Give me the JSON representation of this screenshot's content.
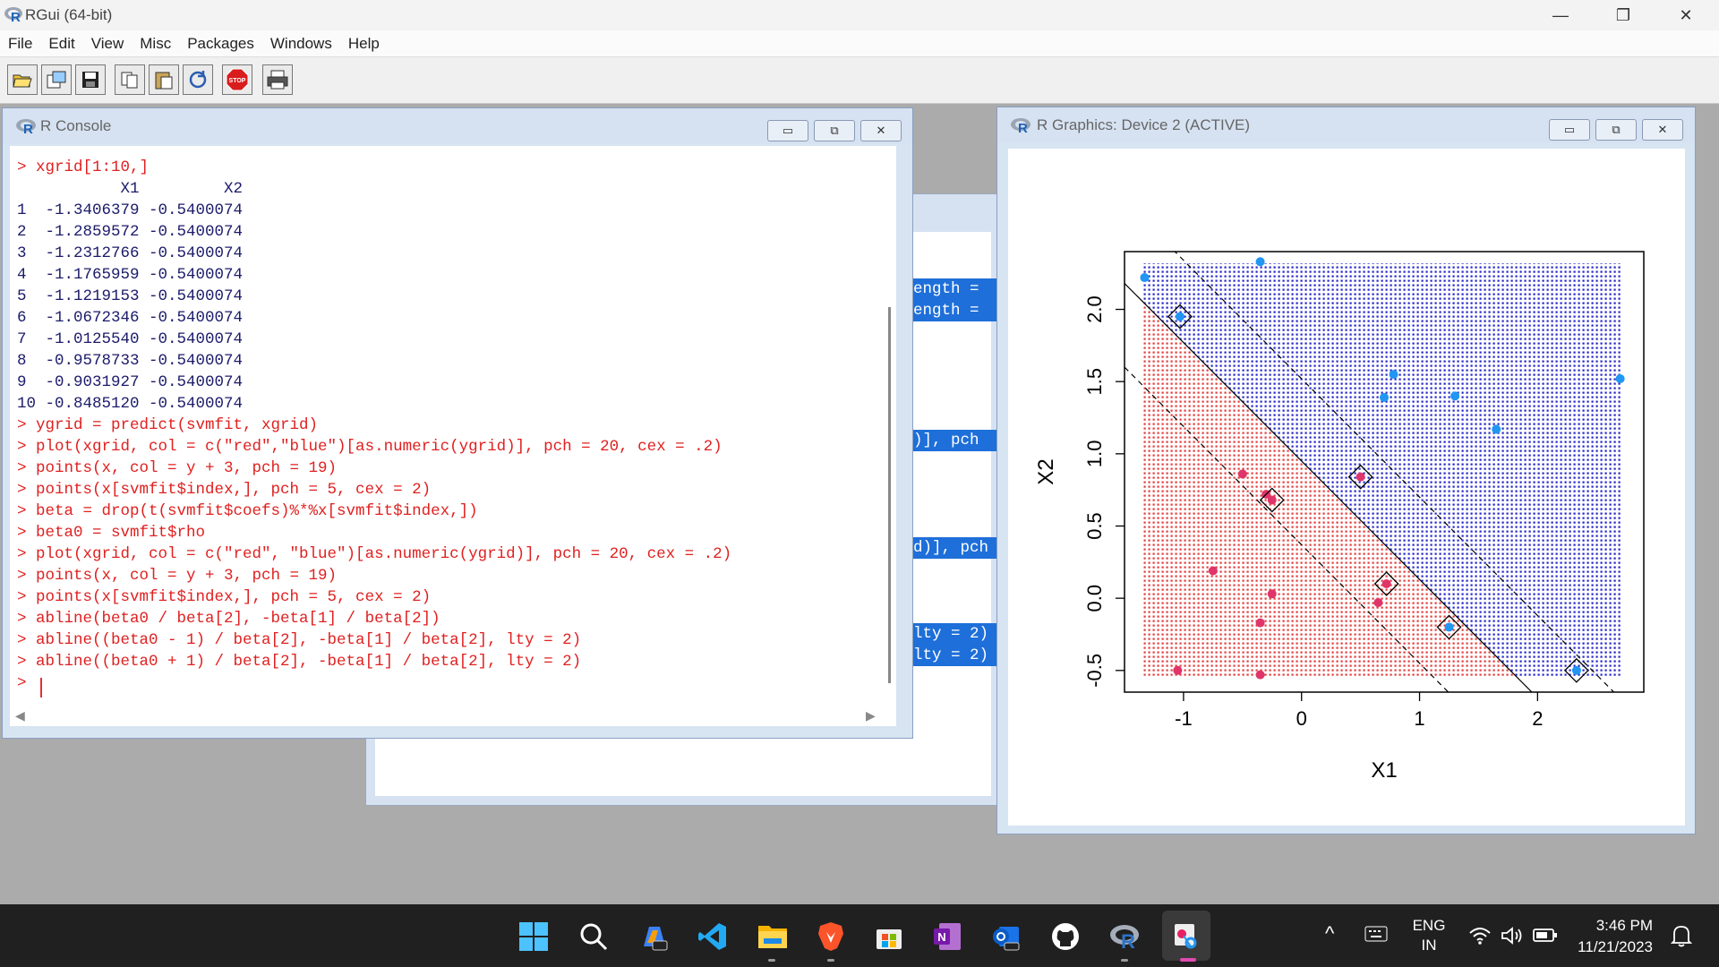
{
  "app": {
    "title": "RGui (64-bit)",
    "menu": [
      "File",
      "Edit",
      "View",
      "Misc",
      "Packages",
      "Windows",
      "Help"
    ]
  },
  "console": {
    "title": "R Console",
    "lines": [
      {
        "text": "> xgrid[1:10,]",
        "style": "red"
      },
      {
        "text": "           X1         X2",
        "style": "blk"
      },
      {
        "text": "1  -1.3406379 -0.5400074",
        "style": "blk"
      },
      {
        "text": "2  -1.2859572 -0.5400074",
        "style": "blk"
      },
      {
        "text": "3  -1.2312766 -0.5400074",
        "style": "blk"
      },
      {
        "text": "4  -1.1765959 -0.5400074",
        "style": "blk"
      },
      {
        "text": "5  -1.1219153 -0.5400074",
        "style": "blk"
      },
      {
        "text": "6  -1.0672346 -0.5400074",
        "style": "blk"
      },
      {
        "text": "7  -1.0125540 -0.5400074",
        "style": "blk"
      },
      {
        "text": "8  -0.9578733 -0.5400074",
        "style": "blk"
      },
      {
        "text": "9  -0.9031927 -0.5400074",
        "style": "blk"
      },
      {
        "text": "10 -0.8485120 -0.5400074",
        "style": "blk"
      },
      {
        "text": "> ygrid = predict(svmfit, xgrid)",
        "style": "red"
      },
      {
        "text": "> plot(xgrid, col = c(\"red\",\"blue\")[as.numeric(ygrid)], pch = 20, cex = .2)",
        "style": "red"
      },
      {
        "text": "> points(x, col = y + 3, pch = 19)",
        "style": "red"
      },
      {
        "text": "> points(x[svmfit$index,], pch = 5, cex = 2)",
        "style": "red"
      },
      {
        "text": "> beta = drop(t(svmfit$coefs)%*%x[svmfit$index,])",
        "style": "red"
      },
      {
        "text": "> beta0 = svmfit$rho",
        "style": "red"
      },
      {
        "text": "> plot(xgrid, col = c(\"red\", \"blue\")[as.numeric(ygrid)], pch = 20, cex = .2)",
        "style": "red"
      },
      {
        "text": "> points(x, col = y + 3, pch = 19)",
        "style": "red"
      },
      {
        "text": "> points(x[svmfit$index,], pch = 5, cex = 2)",
        "style": "red"
      },
      {
        "text": "> abline(beta0 / beta[2], -beta[1] / beta[2])",
        "style": "red"
      },
      {
        "text": "> abline((beta0 - 1) / beta[2], -beta[1] / beta[2], lty = 2)",
        "style": "red"
      },
      {
        "text": "> abline((beta0 + 1) / beta[2], -beta[1] / beta[2], lty = 2)",
        "style": "red"
      },
      {
        "text": "> ",
        "style": "red"
      }
    ]
  },
  "backwin": {
    "fragments": [
      "ength =",
      "ength =",
      ")], pch",
      "d)], pch",
      "lty = 2)",
      "lty = 2)"
    ]
  },
  "graphics": {
    "title": "R Graphics: Device 2 (ACTIVE)"
  },
  "chart_data": {
    "type": "scatter",
    "xlabel": "X1",
    "ylabel": "X2",
    "xlim": [
      -1.5,
      2.9
    ],
    "ylim": [
      -0.65,
      2.4
    ],
    "xticks": [
      "-1",
      "0",
      "1",
      "2"
    ],
    "yticks": [
      "-0.5",
      "0.0",
      "0.5",
      "1.0",
      "1.5",
      "2.0"
    ],
    "grid_xrange": [
      -1.35,
      2.72
    ],
    "grid_yrange": [
      -0.54,
      2.32
    ],
    "decision_line": {
      "intercept": 0.95,
      "slope": -0.82
    },
    "margin_lines": [
      {
        "intercept": 1.52,
        "slope": -0.82
      },
      {
        "intercept": 0.37,
        "slope": -0.82
      }
    ],
    "series": [
      {
        "name": "blue",
        "color": "#2196f3",
        "points": [
          [
            -1.33,
            2.22
          ],
          [
            -0.35,
            2.33
          ],
          [
            -1.03,
            1.95
          ],
          [
            0.78,
            1.55
          ],
          [
            0.7,
            1.39
          ],
          [
            1.3,
            1.4
          ],
          [
            1.65,
            1.17
          ],
          [
            2.7,
            1.52
          ],
          [
            1.25,
            -0.2
          ],
          [
            2.33,
            -0.5
          ]
        ]
      },
      {
        "name": "red",
        "color": "#e0356a",
        "points": [
          [
            0.5,
            0.84
          ],
          [
            -0.5,
            0.86
          ],
          [
            -0.3,
            0.72
          ],
          [
            -0.25,
            0.68
          ],
          [
            -0.75,
            0.19
          ],
          [
            -0.25,
            0.03
          ],
          [
            0.72,
            0.1
          ],
          [
            0.65,
            -0.03
          ],
          [
            -0.35,
            -0.17
          ],
          [
            -1.05,
            -0.5
          ],
          [
            -0.35,
            -0.53
          ]
        ]
      }
    ],
    "support_vectors": [
      [
        -1.03,
        1.95
      ],
      [
        0.5,
        0.84
      ],
      [
        -0.25,
        0.68
      ],
      [
        0.72,
        0.1
      ],
      [
        1.25,
        -0.2
      ],
      [
        2.33,
        -0.5
      ]
    ]
  },
  "taskbar": {
    "lang": "ENG",
    "region": "IN",
    "time": "3:46 PM",
    "date": "11/21/2023"
  }
}
